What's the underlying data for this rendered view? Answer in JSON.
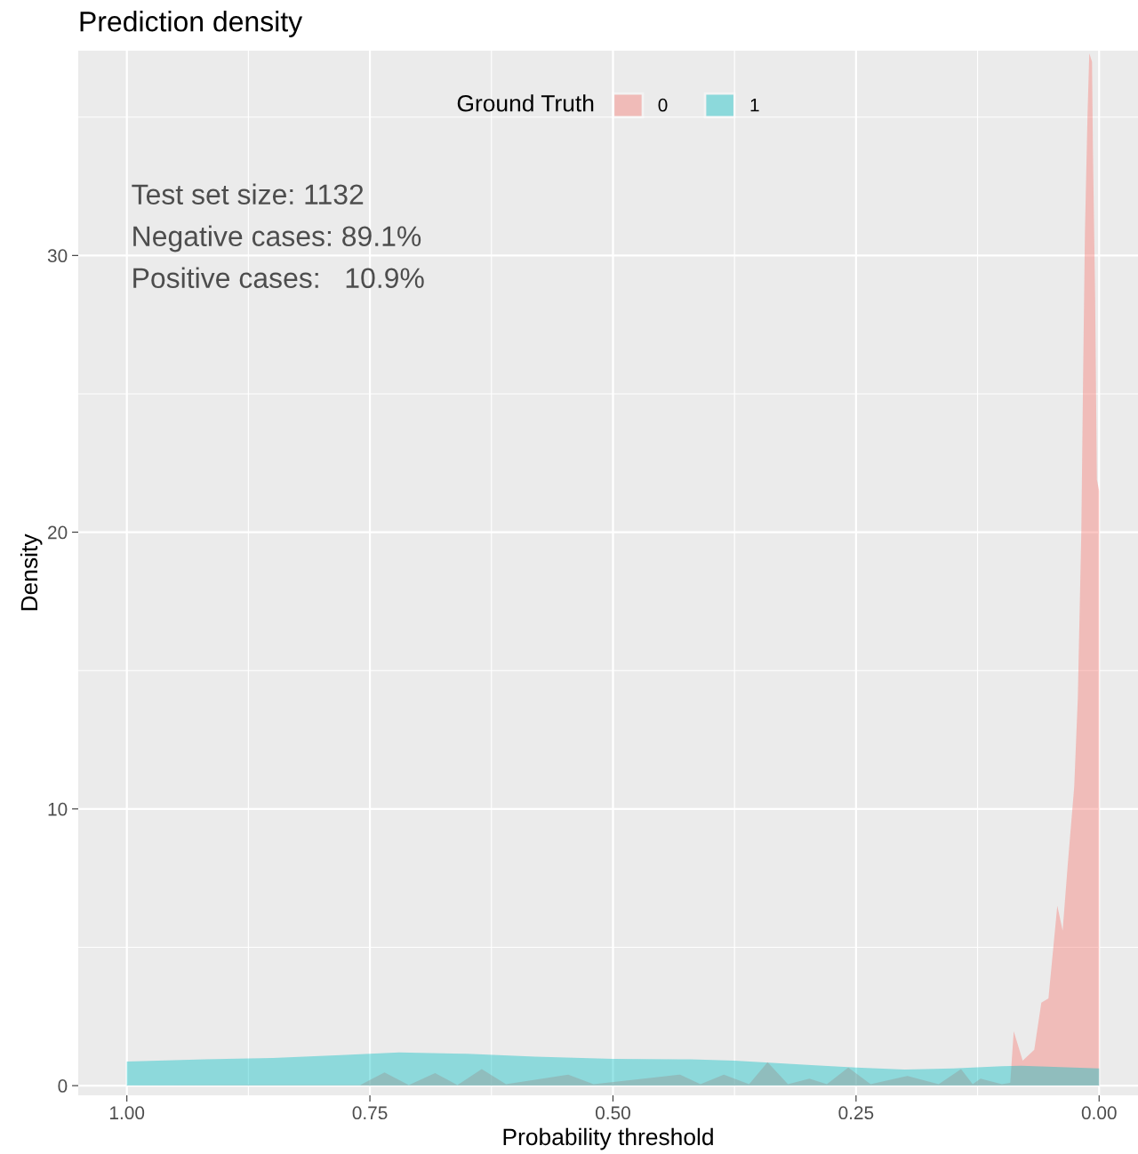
{
  "chart_data": {
    "type": "area",
    "title": "Prediction density",
    "xlabel": "Probability threshold",
    "ylabel": "Density",
    "legend_title": "Ground Truth",
    "xlim": [
      1.05,
      -0.04
    ],
    "ylim": [
      -0.35,
      37.4
    ],
    "xticks": [
      {
        "value": 1.0,
        "label": "1.00"
      },
      {
        "value": 0.75,
        "label": "0.75"
      },
      {
        "value": 0.5,
        "label": "0.50"
      },
      {
        "value": 0.25,
        "label": "0.25"
      },
      {
        "value": 0.0,
        "label": "0.00"
      }
    ],
    "yticks": [
      0,
      10,
      20,
      30
    ],
    "grid": true,
    "legend": "top",
    "annotations": [
      "Test set size: 1132",
      "Negative cases: 89.1%",
      "Positive cases:   10.9%"
    ],
    "series": [
      {
        "name": "0",
        "color": "#f8766d",
        "x": [
          1.0,
          0.85,
          0.76,
          0.735,
          0.71,
          0.683,
          0.66,
          0.635,
          0.61,
          0.546,
          0.52,
          0.456,
          0.431,
          0.41,
          0.386,
          0.36,
          0.341,
          0.32,
          0.298,
          0.28,
          0.258,
          0.235,
          0.197,
          0.165,
          0.142,
          0.13,
          0.122,
          0.1,
          0.0914,
          0.0878,
          0.0786,
          0.0667,
          0.0594,
          0.0521,
          0.043,
          0.0375,
          0.032,
          0.0256,
          0.0219,
          0.0183,
          0.0165,
          0.0146,
          0.0119,
          0.0101,
          0.0073,
          0.0064,
          0.0041,
          0.0023,
          0.0
        ],
        "values": [
          0.01,
          0.02,
          0.02,
          0.48,
          0.02,
          0.45,
          0.02,
          0.6,
          0.05,
          0.4,
          0.05,
          0.3,
          0.4,
          0.05,
          0.4,
          0.05,
          0.85,
          0.05,
          0.25,
          0.05,
          0.65,
          0.05,
          0.35,
          0.05,
          0.6,
          0.05,
          0.25,
          0.05,
          0.1,
          1.96,
          0.9,
          1.3,
          3.0,
          3.15,
          6.5,
          5.6,
          8.1,
          10.8,
          14.0,
          20.0,
          25.5,
          30.8,
          35.1,
          37.3,
          37.0,
          33.9,
          28.5,
          21.9,
          21.5
        ]
      },
      {
        "name": "1",
        "color": "#00bfc4",
        "x": [
          1.0,
          0.92,
          0.85,
          0.78,
          0.72,
          0.65,
          0.58,
          0.5,
          0.42,
          0.375,
          0.3,
          0.25,
          0.2,
          0.15,
          0.1,
          0.08,
          0.0
        ],
        "values": [
          0.87,
          0.95,
          1.0,
          1.1,
          1.2,
          1.15,
          1.05,
          0.97,
          0.95,
          0.9,
          0.75,
          0.65,
          0.58,
          0.62,
          0.7,
          0.72,
          0.62
        ]
      }
    ]
  }
}
